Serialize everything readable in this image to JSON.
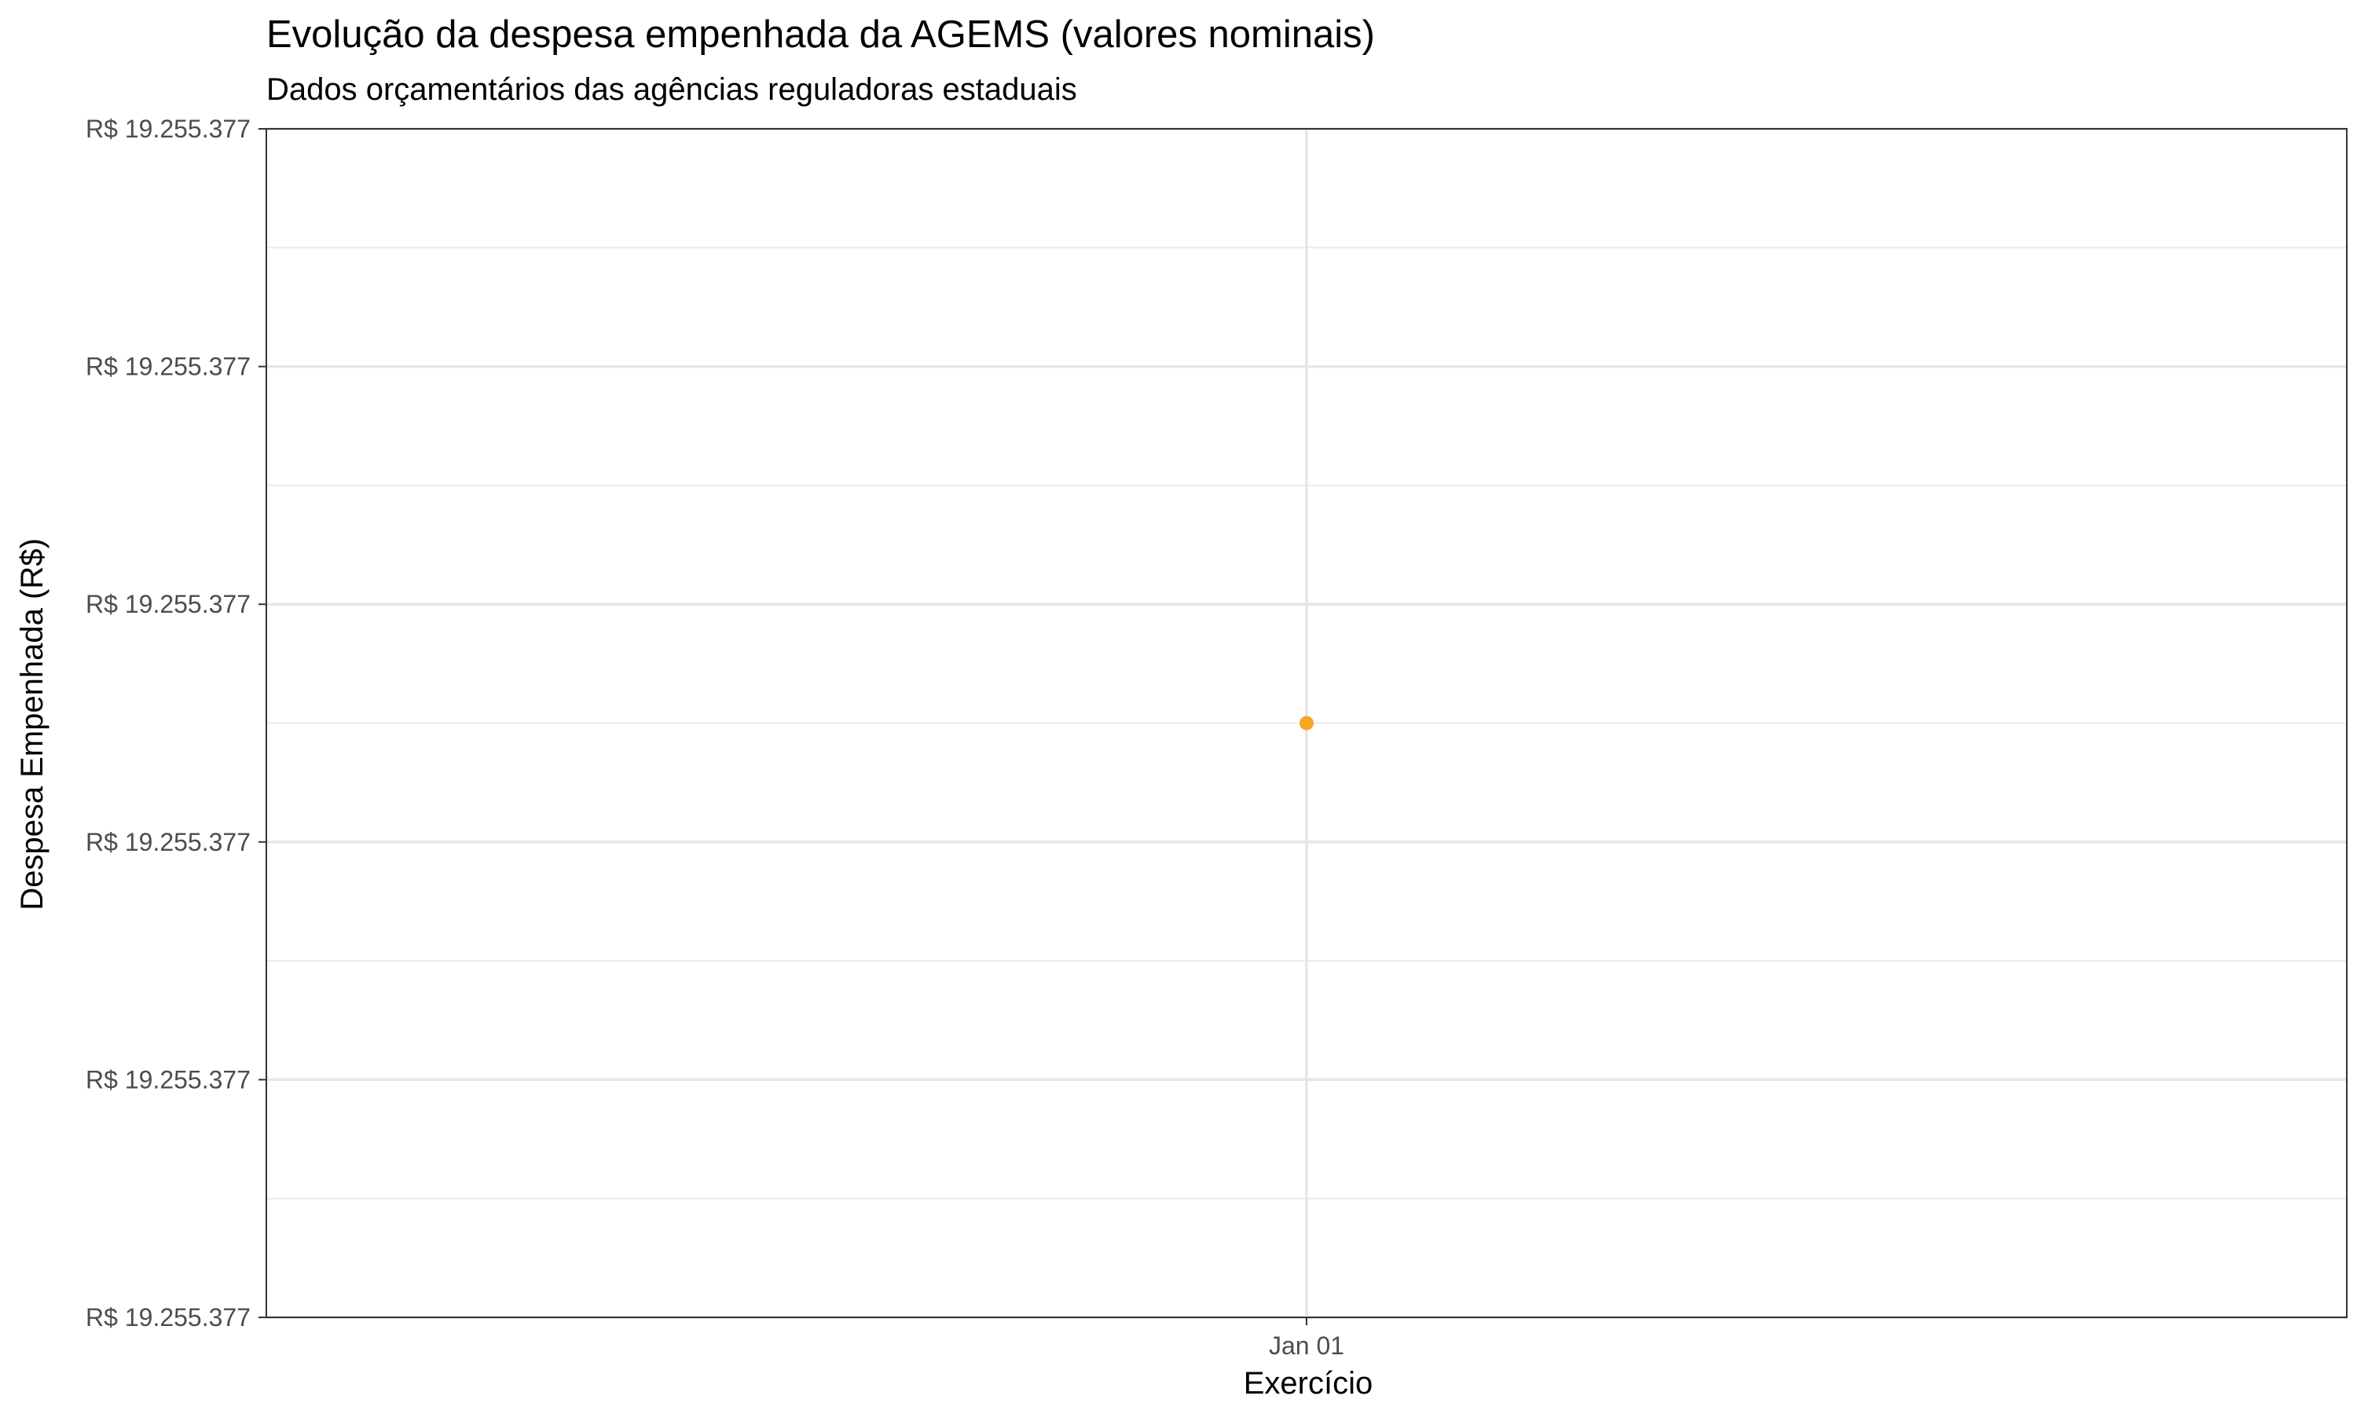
{
  "chart_data": {
    "type": "scatter",
    "title": "Evolução da despesa empenhada da AGEMS (valores nominais)",
    "subtitle": "Dados orçamentários das agências reguladoras estaduais",
    "xlabel": "Exercício",
    "ylabel": "Despesa Empenhada (R$)",
    "x_ticks": [
      "Jan 01"
    ],
    "y_ticks": [
      "R$ 19.255.377",
      "R$ 19.255.377",
      "R$ 19.255.377",
      "R$ 19.255.377",
      "R$ 19.255.377",
      "R$ 19.255.377"
    ],
    "ylim": [
      0,
      1
    ],
    "y_tick_positions": [
      0,
      0.2,
      0.4,
      0.6,
      0.8,
      1
    ],
    "grid": true,
    "legend": "none",
    "point_color": "#F5A623",
    "series": [
      {
        "x": [
          "Jan 01"
        ],
        "y": [
          0.5
        ]
      }
    ]
  }
}
